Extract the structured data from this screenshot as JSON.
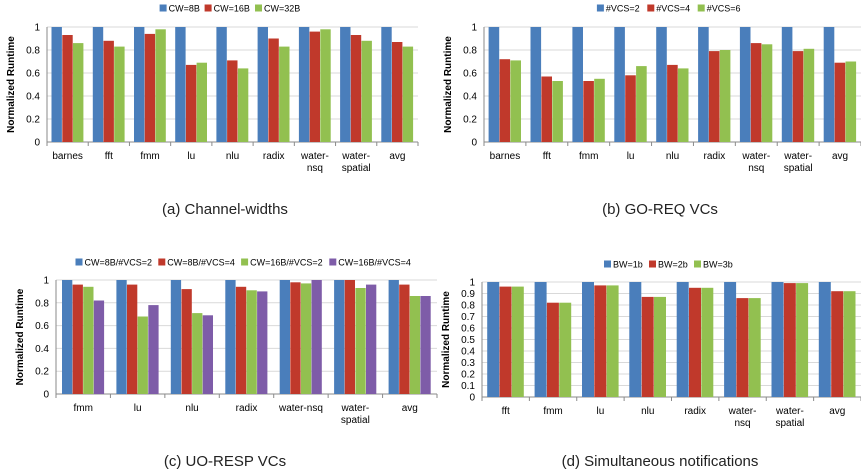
{
  "colors": {
    "blue": "#4a7ebb",
    "red": "#c0392b",
    "green": "#92c050",
    "purple": "#7e5ca8"
  },
  "chart_data": [
    {
      "type": "bar",
      "caption": "(a) Channel-widths",
      "ylabel": "Normalized Runtime",
      "ylim": [
        0,
        1
      ],
      "yticks": [
        "0",
        "0.2",
        "0.4",
        "0.6",
        "0.8",
        "1"
      ],
      "legend_position": "top-center",
      "categories": [
        [
          "barnes"
        ],
        [
          "fft"
        ],
        [
          "fmm"
        ],
        [
          "lu"
        ],
        [
          "nlu"
        ],
        [
          "radix"
        ],
        [
          "water-",
          "nsq"
        ],
        [
          "water-",
          "spatial"
        ],
        [
          "avg"
        ]
      ],
      "series": [
        {
          "name": "CW=8B",
          "color": "#4a7ebb",
          "values": [
            1,
            1,
            1,
            1,
            1,
            1,
            1,
            1,
            1
          ]
        },
        {
          "name": "CW=16B",
          "color": "#c0392b",
          "values": [
            0.93,
            0.88,
            0.94,
            0.67,
            0.71,
            0.9,
            0.96,
            0.93,
            0.87
          ]
        },
        {
          "name": "CW=32B",
          "color": "#92c050",
          "values": [
            0.86,
            0.83,
            0.98,
            0.69,
            0.64,
            0.83,
            0.98,
            0.88,
            0.83
          ]
        }
      ]
    },
    {
      "type": "bar",
      "caption": "(b) GO-REQ VCs",
      "ylabel": "Normalized Runtime",
      "ylim": [
        0,
        1
      ],
      "yticks": [
        "0",
        "0.2",
        "0.4",
        "0.6",
        "0.8",
        "1"
      ],
      "legend_position": "top-center",
      "categories": [
        [
          "barnes"
        ],
        [
          "fft"
        ],
        [
          "fmm"
        ],
        [
          "lu"
        ],
        [
          "nlu"
        ],
        [
          "radix"
        ],
        [
          "water-",
          "nsq"
        ],
        [
          "water-",
          "spatial"
        ],
        [
          "avg"
        ]
      ],
      "series": [
        {
          "name": "#VCS=2",
          "color": "#4a7ebb",
          "values": [
            1,
            1,
            1,
            1,
            1,
            1,
            1,
            1,
            1
          ]
        },
        {
          "name": "#VCS=4",
          "color": "#c0392b",
          "values": [
            0.72,
            0.57,
            0.53,
            0.58,
            0.67,
            0.79,
            0.86,
            0.79,
            0.69
          ]
        },
        {
          "name": "#VCS=6",
          "color": "#92c050",
          "values": [
            0.71,
            0.53,
            0.55,
            0.66,
            0.64,
            0.8,
            0.85,
            0.81,
            0.7
          ]
        }
      ]
    },
    {
      "type": "bar",
      "caption": "(c) UO-RESP VCs",
      "ylabel": "Normalized Runtime",
      "ylim": [
        0,
        1
      ],
      "yticks": [
        "0",
        "0.2",
        "0.4",
        "0.6",
        "0.8",
        "1"
      ],
      "legend_position": "top-center",
      "categories": [
        [
          "fmm"
        ],
        [
          "lu"
        ],
        [
          "nlu"
        ],
        [
          "radix"
        ],
        [
          "water-nsq"
        ],
        [
          "water-",
          "spatial"
        ],
        [
          "avg"
        ]
      ],
      "series": [
        {
          "name": "CW=8B/#VCS=2",
          "color": "#4a7ebb",
          "values": [
            1,
            1,
            1,
            1,
            1,
            1,
            1
          ]
        },
        {
          "name": "CW=8B/#VCS=4",
          "color": "#c0392b",
          "values": [
            0.96,
            0.96,
            0.92,
            0.94,
            0.98,
            1.0,
            0.96
          ]
        },
        {
          "name": "CW=16B/#VCS=2",
          "color": "#92c050",
          "values": [
            0.94,
            0.68,
            0.71,
            0.91,
            0.97,
            0.93,
            0.86
          ]
        },
        {
          "name": "CW=16B/#VCS=4",
          "color": "#7e5ca8",
          "values": [
            0.82,
            0.78,
            0.69,
            0.9,
            1.0,
            0.96,
            0.86
          ]
        }
      ]
    },
    {
      "type": "bar",
      "caption": "(d) Simultaneous notifications",
      "ylabel": "Normalized Runtime",
      "ylim": [
        0,
        1
      ],
      "yticks": [
        "0",
        "0.1",
        "0.2",
        "0.3",
        "0.4",
        "0.5",
        "0.6",
        "0.7",
        "0.8",
        "0.9",
        "1"
      ],
      "legend_position": "top-center",
      "categories": [
        [
          "fft"
        ],
        [
          "fmm"
        ],
        [
          "lu"
        ],
        [
          "nlu"
        ],
        [
          "radix"
        ],
        [
          "water-",
          "nsq"
        ],
        [
          "water-",
          "spatial"
        ],
        [
          "avg"
        ]
      ],
      "series": [
        {
          "name": "BW=1b",
          "color": "#4a7ebb",
          "values": [
            1,
            1,
            1,
            1,
            1,
            1,
            1,
            1
          ]
        },
        {
          "name": "BW=2b",
          "color": "#c0392b",
          "values": [
            0.96,
            0.82,
            0.97,
            0.87,
            0.95,
            0.86,
            0.99,
            0.92
          ]
        },
        {
          "name": "BW=3b",
          "color": "#92c050",
          "values": [
            0.96,
            0.82,
            0.97,
            0.87,
            0.95,
            0.86,
            0.99,
            0.92
          ]
        }
      ]
    }
  ]
}
